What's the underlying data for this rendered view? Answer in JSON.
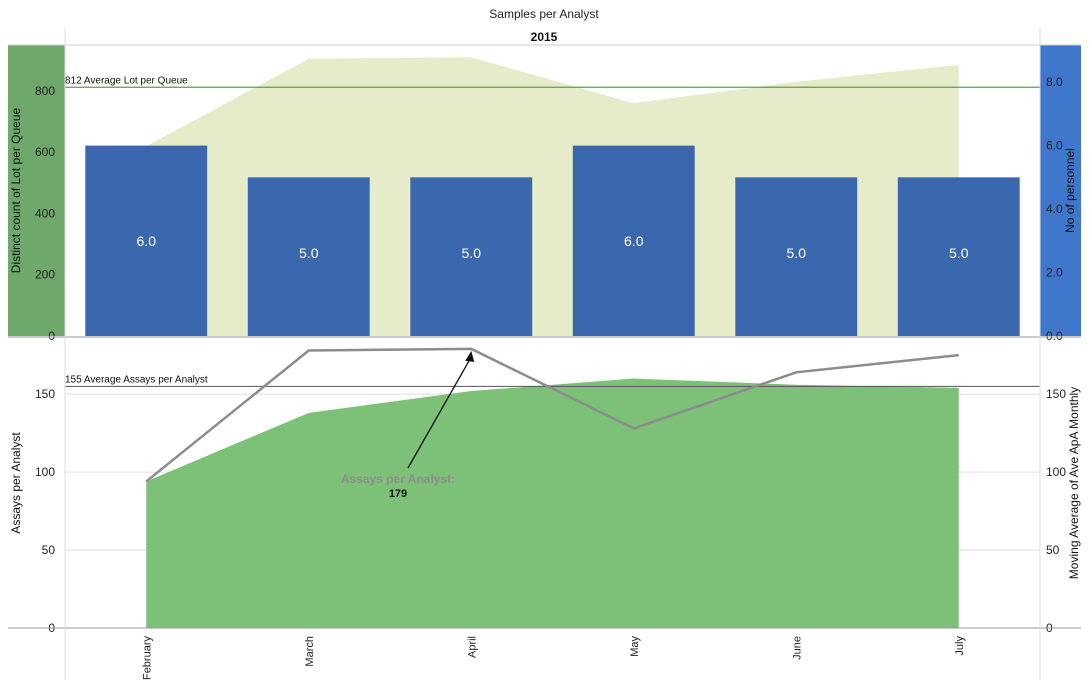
{
  "title": "Samples per Analyst",
  "subtitle": "2015",
  "colors": {
    "left_axis_bg_top": "#6ea86a",
    "right_axis_bg_top": "#3f77cc",
    "bar": "#3a67ad",
    "bar_label": "#ffffff",
    "top_area": "#e6ecc9",
    "bottom_area": "#7cc177",
    "line": "#8c8c8c",
    "top_ref_line": "#4aa84a",
    "bottom_ref_line": "#555555",
    "grid": "#dddddd"
  },
  "chart_data": [
    {
      "type": "bar",
      "panel": "top",
      "categories": [
        "February",
        "March",
        "April",
        "May",
        "June",
        "July"
      ],
      "series": [
        {
          "name": "No of personnel",
          "kind": "bar",
          "axis": "right",
          "values": [
            6.0,
            5.0,
            5.0,
            6.0,
            5.0,
            5.0
          ],
          "labels": [
            "6.0",
            "5.0",
            "5.0",
            "6.0",
            "5.0",
            "5.0"
          ]
        },
        {
          "kind": "area",
          "axis": "left",
          "values": [
            620,
            905,
            910,
            760,
            830,
            885
          ]
        }
      ],
      "ylabel_left": "Distinct count of Lot per Queue",
      "ylim_left": [
        0,
        950
      ],
      "yticks_left": [
        0,
        200,
        400,
        600,
        800
      ],
      "ytick_labels_left": [
        "0",
        "200",
        "400",
        "600",
        "800"
      ],
      "ylabel_right": "No of personnel",
      "ylim_right": [
        0,
        9.17
      ],
      "yticks_right": [
        0,
        2,
        4,
        6,
        8
      ],
      "ytick_labels_right": [
        "0.0",
        "2.0",
        "4.0",
        "6.0",
        "8.0"
      ],
      "reference_line": {
        "value": 812,
        "label": "812 Average Lot per Queue"
      }
    },
    {
      "type": "area",
      "panel": "bottom",
      "categories": [
        "February",
        "March",
        "April",
        "May",
        "June",
        "July"
      ],
      "series": [
        {
          "name": "Assays per Analyst",
          "kind": "line",
          "axis": "left",
          "values": [
            94,
            178,
            179,
            128,
            164,
            175
          ]
        },
        {
          "kind": "area",
          "axis": "right",
          "values": [
            94,
            138,
            152,
            160,
            156,
            154
          ]
        }
      ],
      "ylabel_left": "Assays  per Analyst",
      "ylim_left": [
        0,
        186
      ],
      "yticks_left": [
        0,
        50,
        100,
        150
      ],
      "ytick_labels_left": [
        "0",
        "50",
        "100",
        "150"
      ],
      "ylabel_right": "Moving Average of Ave ApA Monthly",
      "ylim_right": [
        0,
        186
      ],
      "yticks_right": [
        0,
        50,
        100,
        150
      ],
      "ytick_labels_right": [
        "0",
        "50",
        "100",
        "150"
      ],
      "reference_line": {
        "value": 155,
        "label": "155 Average Assays  per Analyst"
      },
      "annotation": {
        "category": "April",
        "label": "Assays per Analyst:",
        "value": "179"
      }
    }
  ]
}
